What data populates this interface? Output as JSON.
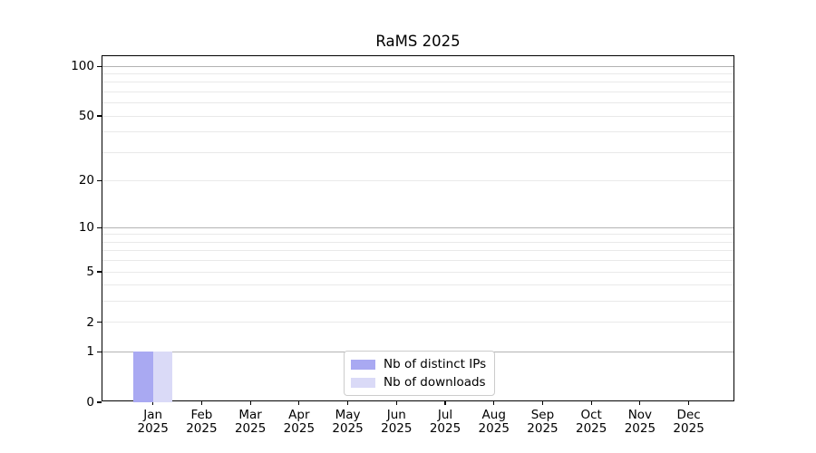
{
  "chart_data": {
    "type": "bar",
    "title": "RaMS 2025",
    "year": "2025",
    "months": [
      "Jan",
      "Feb",
      "Mar",
      "Apr",
      "May",
      "Jun",
      "Jul",
      "Aug",
      "Sep",
      "Oct",
      "Nov",
      "Dec"
    ],
    "categories": [
      "Jan 2025",
      "Feb 2025",
      "Mar 2025",
      "Apr 2025",
      "May 2025",
      "Jun 2025",
      "Jul 2025",
      "Aug 2025",
      "Sep 2025",
      "Oct 2025",
      "Nov 2025",
      "Dec 2025"
    ],
    "series": [
      {
        "name": "Nb of distinct IPs",
        "color": "#a9a9f2",
        "values": [
          1,
          0,
          0,
          0,
          0,
          0,
          0,
          0,
          0,
          0,
          0,
          0
        ]
      },
      {
        "name": "Nb of downloads",
        "color": "#dadaf7",
        "values": [
          1,
          0,
          0,
          0,
          0,
          0,
          0,
          0,
          0,
          0,
          0,
          0
        ]
      }
    ],
    "xlabel": "",
    "ylabel": "",
    "yscale": "log1p",
    "ylim": [
      0,
      115
    ],
    "y_ticks": [
      {
        "value": 0,
        "label": "0"
      },
      {
        "value": 1,
        "label": "1"
      },
      {
        "value": 2,
        "label": "2"
      },
      {
        "value": 5,
        "label": "5"
      },
      {
        "value": 10,
        "label": "10"
      },
      {
        "value": 20,
        "label": "20"
      },
      {
        "value": 50,
        "label": "50"
      },
      {
        "value": 100,
        "label": "100"
      }
    ],
    "major_gridlines": [
      1,
      10,
      100
    ],
    "minor_gridlines": [
      2,
      3,
      4,
      5,
      6,
      7,
      8,
      9,
      20,
      30,
      40,
      50,
      60,
      70,
      80,
      90
    ],
    "grid": true,
    "legend_position": "lower center"
  },
  "colors": {
    "bar_distinct_ips": "#a9a9f2",
    "bar_downloads": "#dadaf7",
    "major_grid": "#b3b3b3",
    "minor_grid": "#e9e9e9",
    "spine": "#000000",
    "text": "#000000",
    "legend_border": "#cccccc",
    "background": "#ffffff"
  }
}
